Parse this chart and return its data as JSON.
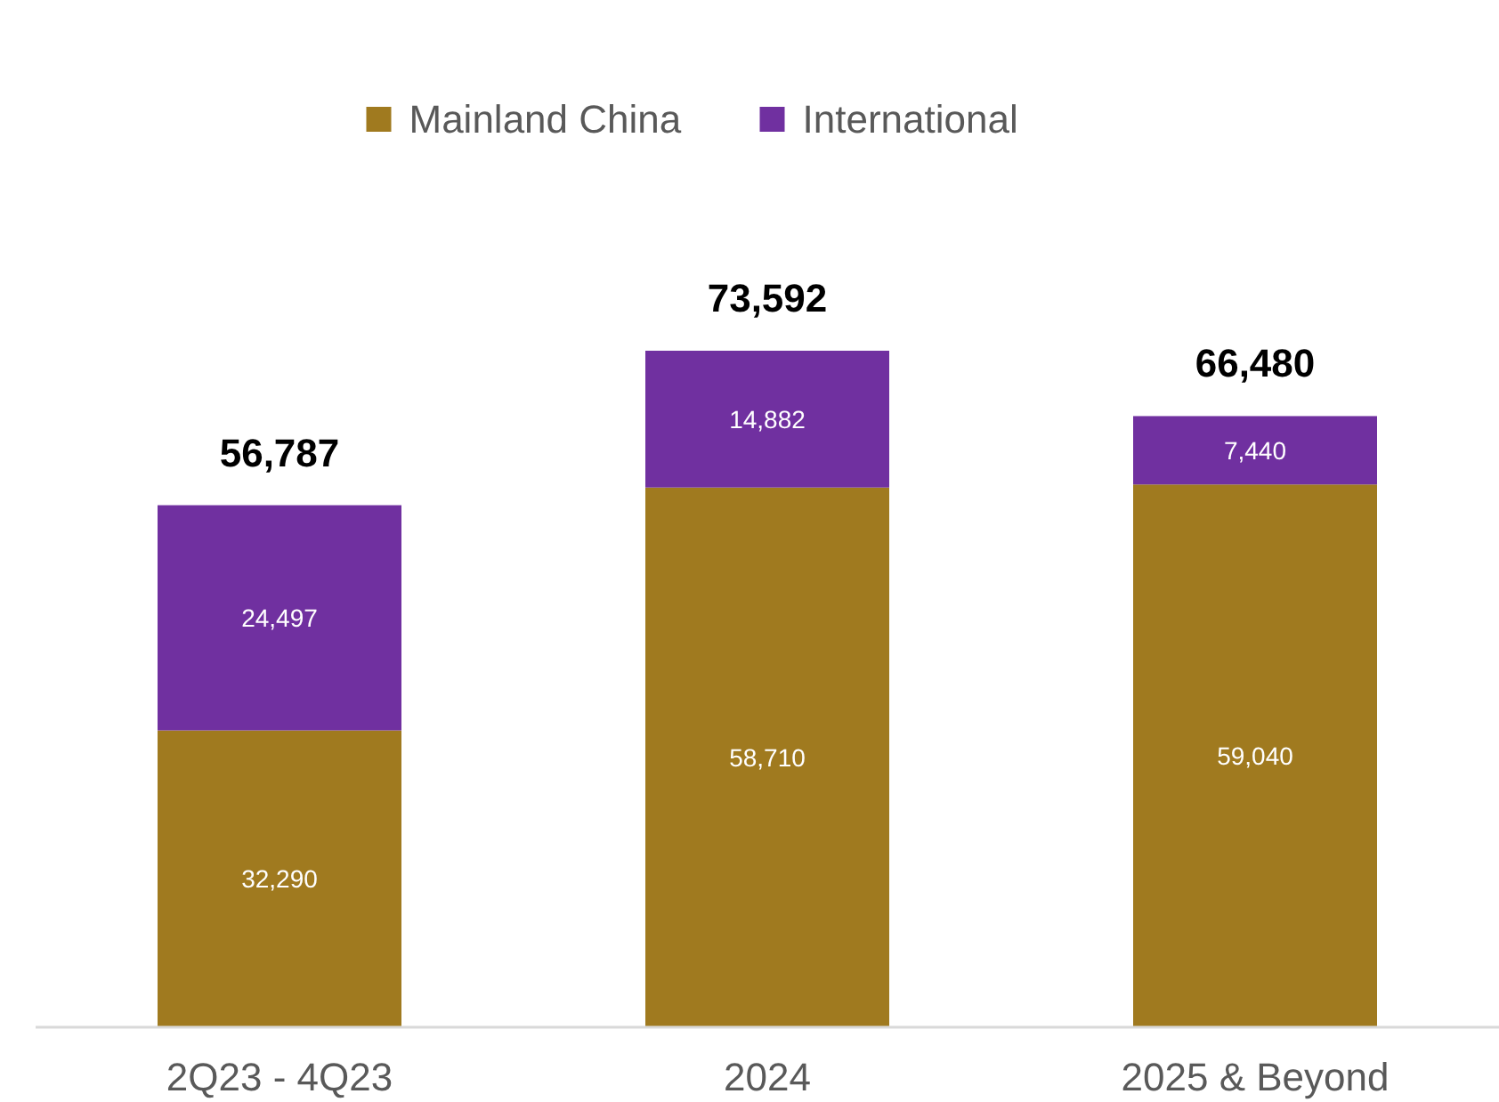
{
  "chart_data": {
    "type": "bar",
    "stacked": true,
    "categories": [
      "2Q23 - 4Q23",
      "2024",
      "2025 & Beyond"
    ],
    "series": [
      {
        "name": "Mainland China",
        "color": "#a07a1f",
        "values": [
          32290,
          58710,
          59040
        ],
        "value_labels": [
          "32,290",
          "58,710",
          "59,040"
        ]
      },
      {
        "name": "International",
        "color": "#7030a0",
        "values": [
          24497,
          14882,
          7440
        ],
        "value_labels": [
          "24,497",
          "14,882",
          "7,440"
        ]
      }
    ],
    "totals": [
      "56,787",
      "73,592",
      "66,480"
    ],
    "legend": "top",
    "grid": false
  }
}
